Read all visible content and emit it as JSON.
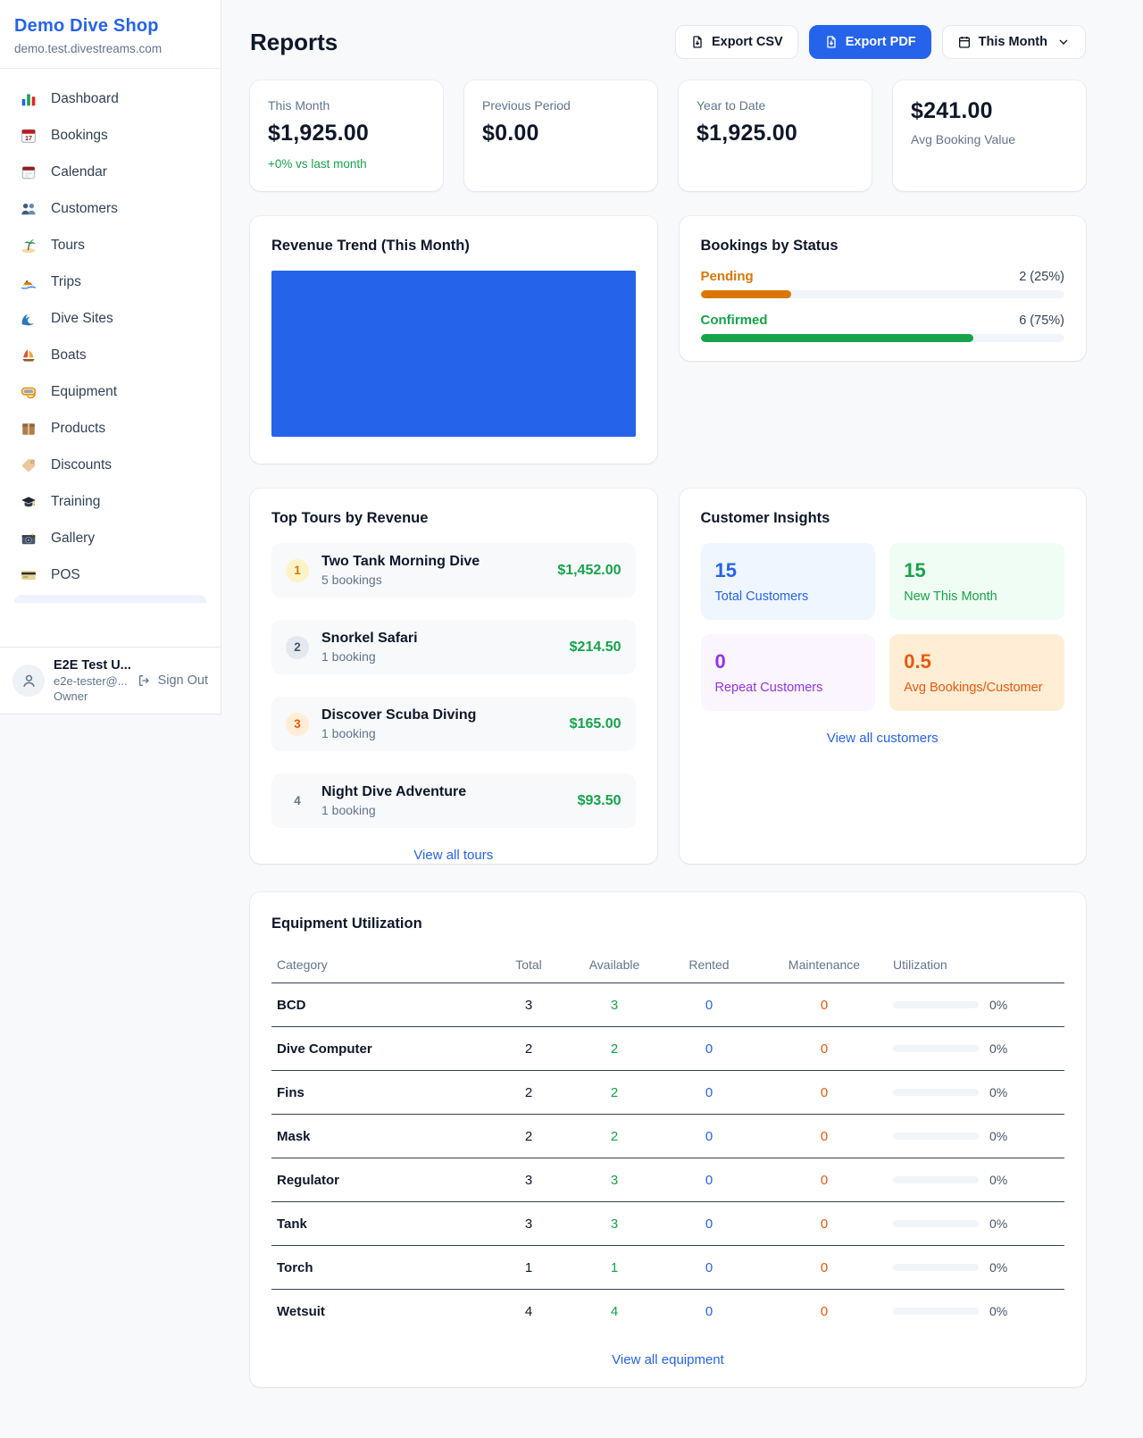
{
  "colors": {
    "accent_blue": "#2563eb",
    "green": "#16a34a",
    "amber": "#d97706",
    "orange": "#ea580c",
    "purple": "#9333ea",
    "chart_fill": "#2563eb"
  },
  "sidebar": {
    "shop_name": "Demo Dive Shop",
    "domain": "demo.test.divestreams.com",
    "items": [
      {
        "label": "Dashboard",
        "icon": "bar-chart-icon"
      },
      {
        "label": "Bookings",
        "icon": "calendar-date-icon"
      },
      {
        "label": "Calendar",
        "icon": "tear-calendar-icon"
      },
      {
        "label": "Customers",
        "icon": "people-icon"
      },
      {
        "label": "Tours",
        "icon": "island-icon"
      },
      {
        "label": "Trips",
        "icon": "speedboat-icon"
      },
      {
        "label": "Dive Sites",
        "icon": "wave-icon"
      },
      {
        "label": "Boats",
        "icon": "sailboat-icon"
      },
      {
        "label": "Equipment",
        "icon": "dive-mask-icon"
      },
      {
        "label": "Products",
        "icon": "package-icon"
      },
      {
        "label": "Discounts",
        "icon": "tag-icon"
      },
      {
        "label": "Training",
        "icon": "graduation-cap-icon"
      },
      {
        "label": "Gallery",
        "icon": "camera-icon"
      },
      {
        "label": "POS",
        "icon": "credit-card-icon"
      }
    ],
    "user": {
      "name": "E2E Test U...",
      "email": "e2e-tester@...",
      "role": "Owner",
      "sign_out_label": "Sign Out"
    }
  },
  "header": {
    "title": "Reports",
    "export_csv_label": "Export CSV",
    "export_pdf_label": "Export PDF",
    "period_label": "This Month"
  },
  "stats": [
    {
      "label": "This Month",
      "value": "$1,925.00",
      "delta": "+0% vs last month"
    },
    {
      "label": "Previous Period",
      "value": "$0.00"
    },
    {
      "label": "Year to Date",
      "value": "$1,925.00"
    },
    {
      "label": "Avg Booking Value",
      "value": "$241.00"
    }
  ],
  "revenue_trend": {
    "title": "Revenue Trend (This Month)"
  },
  "bookings_by_status": {
    "title": "Bookings by Status",
    "rows": [
      {
        "label": "Pending",
        "count_text": "2 (25%)",
        "percent": 25,
        "color": "#d97706"
      },
      {
        "label": "Confirmed",
        "count_text": "6 (75%)",
        "percent": 75,
        "color": "#16a34a"
      }
    ]
  },
  "top_tours": {
    "title": "Top Tours by Revenue",
    "view_all_label": "View all tours",
    "items": [
      {
        "rank": "1",
        "name": "Two Tank Morning Dive",
        "bookings": "5 bookings",
        "amount": "$1,452.00"
      },
      {
        "rank": "2",
        "name": "Snorkel Safari",
        "bookings": "1 booking",
        "amount": "$214.50"
      },
      {
        "rank": "3",
        "name": "Discover Scuba Diving",
        "bookings": "1 booking",
        "amount": "$165.00"
      },
      {
        "rank": "4",
        "name": "Night Dive Adventure",
        "bookings": "1 booking",
        "amount": "$93.50"
      }
    ]
  },
  "customer_insights": {
    "title": "Customer Insights",
    "view_all_label": "View all customers",
    "tiles": [
      {
        "value": "15",
        "label": "Total Customers",
        "bg": "#eff6ff",
        "fg": "#2563eb"
      },
      {
        "value": "15",
        "label": "New This Month",
        "bg": "#f0fdf4",
        "fg": "#16a34a"
      },
      {
        "value": "0",
        "label": "Repeat Customers",
        "bg": "#faf5ff",
        "fg": "#9333ea"
      },
      {
        "value": "0.5",
        "label": "Avg Bookings/Customer",
        "bg": "#ffedd5",
        "fg": "#ea580c"
      }
    ]
  },
  "equipment": {
    "title": "Equipment Utilization",
    "view_all_label": "View all equipment",
    "columns": [
      "Category",
      "Total",
      "Available",
      "Rented",
      "Maintenance",
      "Utilization"
    ],
    "rows": [
      {
        "category": "BCD",
        "total": "3",
        "available": "3",
        "rented": "0",
        "maintenance": "0",
        "utilization_text": "0%",
        "utilization_percent": 0
      },
      {
        "category": "Dive Computer",
        "total": "2",
        "available": "2",
        "rented": "0",
        "maintenance": "0",
        "utilization_text": "0%",
        "utilization_percent": 0
      },
      {
        "category": "Fins",
        "total": "2",
        "available": "2",
        "rented": "0",
        "maintenance": "0",
        "utilization_text": "0%",
        "utilization_percent": 0
      },
      {
        "category": "Mask",
        "total": "2",
        "available": "2",
        "rented": "0",
        "maintenance": "0",
        "utilization_text": "0%",
        "utilization_percent": 0
      },
      {
        "category": "Regulator",
        "total": "3",
        "available": "3",
        "rented": "0",
        "maintenance": "0",
        "utilization_text": "0%",
        "utilization_percent": 0
      },
      {
        "category": "Tank",
        "total": "3",
        "available": "3",
        "rented": "0",
        "maintenance": "0",
        "utilization_text": "0%",
        "utilization_percent": 0
      },
      {
        "category": "Torch",
        "total": "1",
        "available": "1",
        "rented": "0",
        "maintenance": "0",
        "utilization_text": "0%",
        "utilization_percent": 0
      },
      {
        "category": "Wetsuit",
        "total": "4",
        "available": "4",
        "rented": "0",
        "maintenance": "0",
        "utilization_text": "0%",
        "utilization_percent": 0
      }
    ]
  },
  "chart_data": [
    {
      "type": "area",
      "title": "Revenue Trend (This Month)",
      "x": [
        "This Month"
      ],
      "values": [
        1925
      ],
      "ylim": [
        0,
        1925
      ],
      "notes": "rendered as a single solid full-width filled block, no axes/ticks/labels visible",
      "color": "#2563eb",
      "grid": false,
      "legend": false
    },
    {
      "type": "bar",
      "title": "Bookings by Status",
      "categories": [
        "Pending",
        "Confirmed"
      ],
      "values": [
        2,
        6
      ],
      "percent": [
        25,
        75
      ],
      "data_labels": [
        "2 (25%)",
        "6 (75%)"
      ],
      "colors": [
        "#d97706",
        "#16a34a"
      ],
      "orientation": "horizontal",
      "xlim": [
        0,
        100
      ]
    }
  ]
}
